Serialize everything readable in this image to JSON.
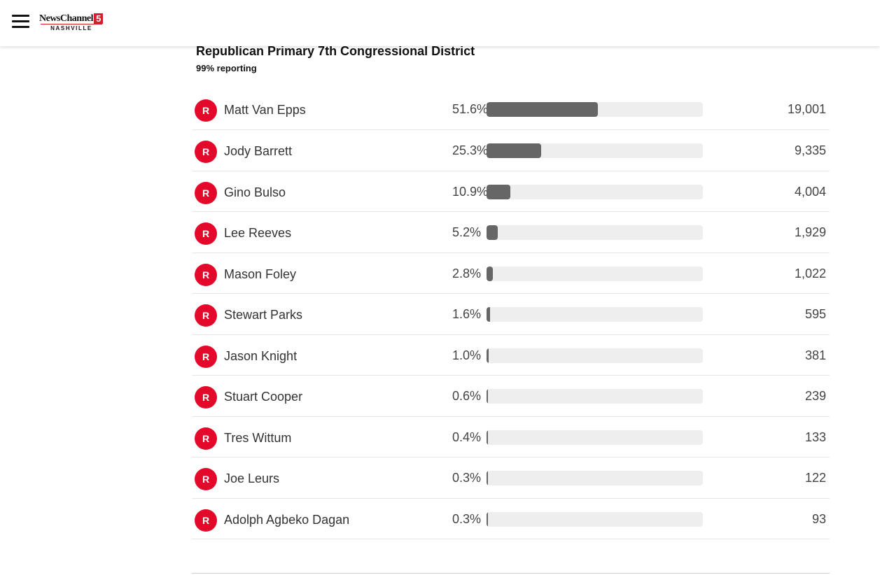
{
  "header": {
    "menu_icon": "hamburger-menu-icon",
    "logo": {
      "top_text": "NewsChannel",
      "number": "5",
      "bottom_text": "NASHVILLE",
      "accent_color": "#d81e2c"
    }
  },
  "race": {
    "title": "Republican Primary 7th Congressional District",
    "reporting": "99% reporting",
    "party_color": "#e4092a",
    "bar_color": "#666666",
    "candidates": [
      {
        "party": "R",
        "name": "Matt Van Epps",
        "percent_label": "51.6%",
        "percent": 51.6,
        "votes": "19,001"
      },
      {
        "party": "R",
        "name": "Jody Barrett",
        "percent_label": "25.3%",
        "percent": 25.3,
        "votes": "9,335"
      },
      {
        "party": "R",
        "name": "Gino Bulso",
        "percent_label": "10.9%",
        "percent": 10.9,
        "votes": "4,004"
      },
      {
        "party": "R",
        "name": "Lee Reeves",
        "percent_label": "5.2%",
        "percent": 5.2,
        "votes": "1,929"
      },
      {
        "party": "R",
        "name": "Mason Foley",
        "percent_label": "2.8%",
        "percent": 2.8,
        "votes": "1,022"
      },
      {
        "party": "R",
        "name": "Stewart Parks",
        "percent_label": "1.6%",
        "percent": 1.6,
        "votes": "595"
      },
      {
        "party": "R",
        "name": "Jason Knight",
        "percent_label": "1.0%",
        "percent": 1.0,
        "votes": "381"
      },
      {
        "party": "R",
        "name": "Stuart Cooper",
        "percent_label": "0.6%",
        "percent": 0.6,
        "votes": "239"
      },
      {
        "party": "R",
        "name": "Tres Wittum",
        "percent_label": "0.4%",
        "percent": 0.4,
        "votes": "133"
      },
      {
        "party": "R",
        "name": "Joe Leurs",
        "percent_label": "0.3%",
        "percent": 0.3,
        "votes": "122"
      },
      {
        "party": "R",
        "name": "Adolph Agbeko Dagan",
        "percent_label": "0.3%",
        "percent": 0.3,
        "votes": "93"
      }
    ]
  }
}
